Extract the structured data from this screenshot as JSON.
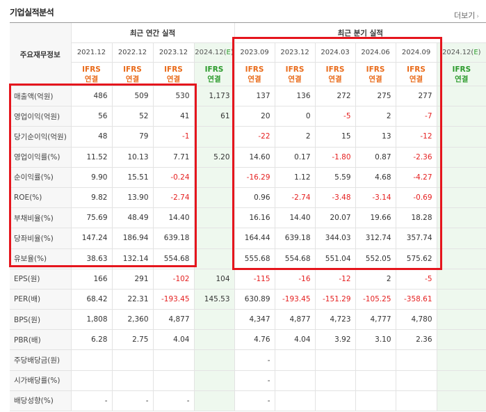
{
  "section_title": "기업실적분석",
  "more_link": "더보기",
  "more_arrow": "›",
  "corner_label": "주요재무정보",
  "groups": {
    "annual": "최근 연간 실적",
    "quarterly": "최근 분기 실적"
  },
  "periods": [
    "2021.12",
    "2022.12",
    "2023.12",
    "2024.12(E)",
    "2023.09",
    "2023.12",
    "2024.03",
    "2024.06",
    "2024.09",
    "2024.12(E)"
  ],
  "ifrs": "IFRS",
  "basis": "연결",
  "rows": [
    {
      "label": "매출액(억원)",
      "values": [
        "486",
        "509",
        "530",
        "1,173",
        "137",
        "136",
        "272",
        "275",
        "277",
        ""
      ]
    },
    {
      "label": "영업이익(억원)",
      "values": [
        "56",
        "52",
        "41",
        "61",
        "20",
        "0",
        "-5",
        "2",
        "-7",
        ""
      ]
    },
    {
      "label": "당기순이익(억원)",
      "values": [
        "48",
        "79",
        "-1",
        "",
        "-22",
        "2",
        "15",
        "13",
        "-12",
        ""
      ]
    },
    {
      "label": "영업이익률(%)",
      "values": [
        "11.52",
        "10.13",
        "7.71",
        "5.20",
        "14.60",
        "0.17",
        "-1.80",
        "0.87",
        "-2.36",
        ""
      ]
    },
    {
      "label": "순이익률(%)",
      "values": [
        "9.90",
        "15.51",
        "-0.24",
        "",
        "-16.29",
        "1.12",
        "5.59",
        "4.68",
        "-4.27",
        ""
      ]
    },
    {
      "label": "ROE(%)",
      "values": [
        "9.82",
        "13.90",
        "-2.74",
        "",
        "0.96",
        "-2.74",
        "-3.48",
        "-3.14",
        "-0.69",
        ""
      ]
    },
    {
      "label": "부채비율(%)",
      "values": [
        "75.69",
        "48.49",
        "14.40",
        "",
        "16.16",
        "14.40",
        "20.07",
        "19.66",
        "18.28",
        ""
      ]
    },
    {
      "label": "당좌비율(%)",
      "values": [
        "147.24",
        "186.94",
        "639.18",
        "",
        "164.44",
        "639.18",
        "344.03",
        "312.74",
        "357.74",
        ""
      ]
    },
    {
      "label": "유보율(%)",
      "values": [
        "38.63",
        "132.14",
        "554.68",
        "",
        "555.68",
        "554.68",
        "551.04",
        "552.05",
        "575.62",
        ""
      ]
    },
    {
      "label": "EPS(원)",
      "values": [
        "166",
        "291",
        "-102",
        "104",
        "-115",
        "-16",
        "-12",
        "2",
        "-5",
        ""
      ]
    },
    {
      "label": "PER(배)",
      "values": [
        "68.42",
        "22.31",
        "-193.45",
        "145.53",
        "630.89",
        "-193.45",
        "-151.29",
        "-105.25",
        "-358.61",
        ""
      ]
    },
    {
      "label": "BPS(원)",
      "values": [
        "1,808",
        "2,360",
        "4,877",
        "",
        "4,347",
        "4,877",
        "4,723",
        "4,777",
        "4,780",
        ""
      ]
    },
    {
      "label": "PBR(배)",
      "values": [
        "6.28",
        "2.75",
        "4.04",
        "",
        "4.76",
        "4.04",
        "3.92",
        "3.10",
        "2.36",
        ""
      ]
    },
    {
      "label": "주당배당금(원)",
      "values": [
        "",
        "",
        "",
        "",
        "-",
        "",
        "",
        "",
        "",
        ""
      ]
    },
    {
      "label": "시가배당률(%)",
      "values": [
        "",
        "",
        "",
        "",
        "-",
        "",
        "",
        "",
        "",
        ""
      ]
    },
    {
      "label": "배당성향(%)",
      "values": [
        "-",
        "-",
        "-",
        "",
        "-",
        "",
        "",
        "",
        "",
        ""
      ]
    }
  ],
  "colors": {
    "negative": "#e52020",
    "ifrs": "#e96b1a",
    "estimate": "#2d9b2d",
    "highlight": "#e5151d"
  }
}
